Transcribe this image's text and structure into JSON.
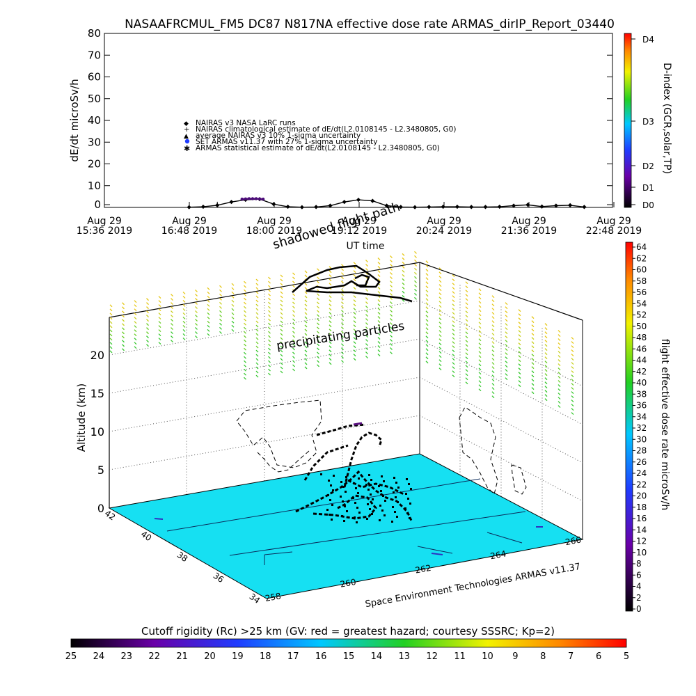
{
  "title": "NASAAFRCMUL_FM5 DC87 N817NA effective dose rate ARMAS_dirIP_Report_03440",
  "top_panel": {
    "ylabel": "dE/dt microSv/h",
    "yticks": [
      "0",
      "10",
      "20",
      "30",
      "40",
      "50",
      "60",
      "70",
      "80"
    ],
    "xlabel": "UT time",
    "xticks": [
      {
        "day": "Aug 29",
        "time": "15:36 2019"
      },
      {
        "day": "Aug 29",
        "time": "16:48 2019"
      },
      {
        "day": "Aug 29",
        "time": "18:00 2019"
      },
      {
        "day": "Aug 29",
        "time": "19:12 2019"
      },
      {
        "day": "Aug 29",
        "time": "20:24 2019"
      },
      {
        "day": "Aug 29",
        "time": "21:36 2019"
      },
      {
        "day": "Aug 29",
        "time": "22:48 2019"
      }
    ],
    "legend": [
      "NAIRAS v3 NASA LaRC runs",
      "NAIRAS climatological estimate of dE/dt(L2.0108145 - L2.3480805, G0)",
      "average NAIRAS v3 10% 1-sigma uncertainty",
      "SET ARMAS v11.37 with 27% 1-sigma uncertainty",
      "ARMAS statistical estimate of dE/dt(L2.0108145 - L2.3480805, G0)"
    ],
    "dindex_label": "D-index (GCR,solar,TP)",
    "dindex_ticks": [
      "D0",
      "D1",
      "D2",
      "D3",
      "D4"
    ]
  },
  "scene": {
    "zlabel": "Altitude (km)",
    "zticks": [
      "0",
      "5",
      "10",
      "15",
      "20"
    ],
    "lat_ticks": [
      "34",
      "36",
      "38",
      "40",
      "42"
    ],
    "lon_ticks": [
      "258",
      "260",
      "262",
      "264",
      "266"
    ],
    "label_shadow": "shadowed flight path",
    "label_precip": "precipitating particles",
    "credit": "Space Environment Technologies ARMAS v11.37"
  },
  "dose_colorbar": {
    "label": "flight effective dose rate microSv/h",
    "ticks": [
      "0",
      "2",
      "4",
      "6",
      "8",
      "10",
      "12",
      "14",
      "16",
      "18",
      "20",
      "22",
      "24",
      "26",
      "28",
      "30",
      "32",
      "34",
      "36",
      "38",
      "40",
      "42",
      "44",
      "46",
      "48",
      "50",
      "52",
      "54",
      "56",
      "58",
      "60",
      "62",
      "64"
    ]
  },
  "rc_colorbar": {
    "label": "Cutoff rigidity (Rc) >25 km (GV: red = greatest hazard; courtesy SSSRC; Kp=2)",
    "ticks": [
      "25",
      "24",
      "23",
      "22",
      "21",
      "20",
      "19",
      "18",
      "17",
      "16",
      "15",
      "14",
      "13",
      "12",
      "11",
      "10",
      "9",
      "8",
      "7",
      "6",
      "5"
    ]
  },
  "chart_data": {
    "type": "line",
    "title": "NASAAFRCMUL_FM5 DC87 N817NA effective dose rate ARMAS_dirIP_Report_03440",
    "xlabel": "UT time",
    "ylabel": "dE/dt microSv/h",
    "ylim": [
      0,
      80
    ],
    "xlim": [
      "Aug 29 15:36 2019",
      "Aug 29 22:48 2019"
    ],
    "series": [
      {
        "name": "NAIRAS v3 NASA LaRC runs",
        "x_hours": [
          16.8,
          17.0,
          17.2,
          17.4,
          17.6,
          17.8,
          18.0,
          18.2,
          18.4,
          18.6,
          18.8,
          19.0,
          19.2,
          19.4,
          19.6,
          19.8,
          20.0,
          20.2,
          20.4,
          20.6,
          20.8,
          21.0,
          21.2,
          21.4,
          21.6,
          21.8,
          22.0,
          22.2,
          22.4
        ],
        "values": [
          0.1,
          0.3,
          1.0,
          2.5,
          3.5,
          3.8,
          1.5,
          0.3,
          0.1,
          0.2,
          0.8,
          2.5,
          3.5,
          3.0,
          0.8,
          0.2,
          0.1,
          0.2,
          0.3,
          0.3,
          0.2,
          0.2,
          0.3,
          0.8,
          1.2,
          0.4,
          0.8,
          1.0,
          0.2
        ]
      },
      {
        "name": "SET ARMAS v11.37 with 27% 1-sigma uncertainty",
        "x_hours": [
          17.55,
          17.6,
          17.65,
          17.7,
          17.75,
          17.8,
          17.85
        ],
        "values": [
          3.8,
          3.9,
          4.0,
          4.0,
          4.0,
          3.9,
          3.8
        ]
      }
    ]
  }
}
